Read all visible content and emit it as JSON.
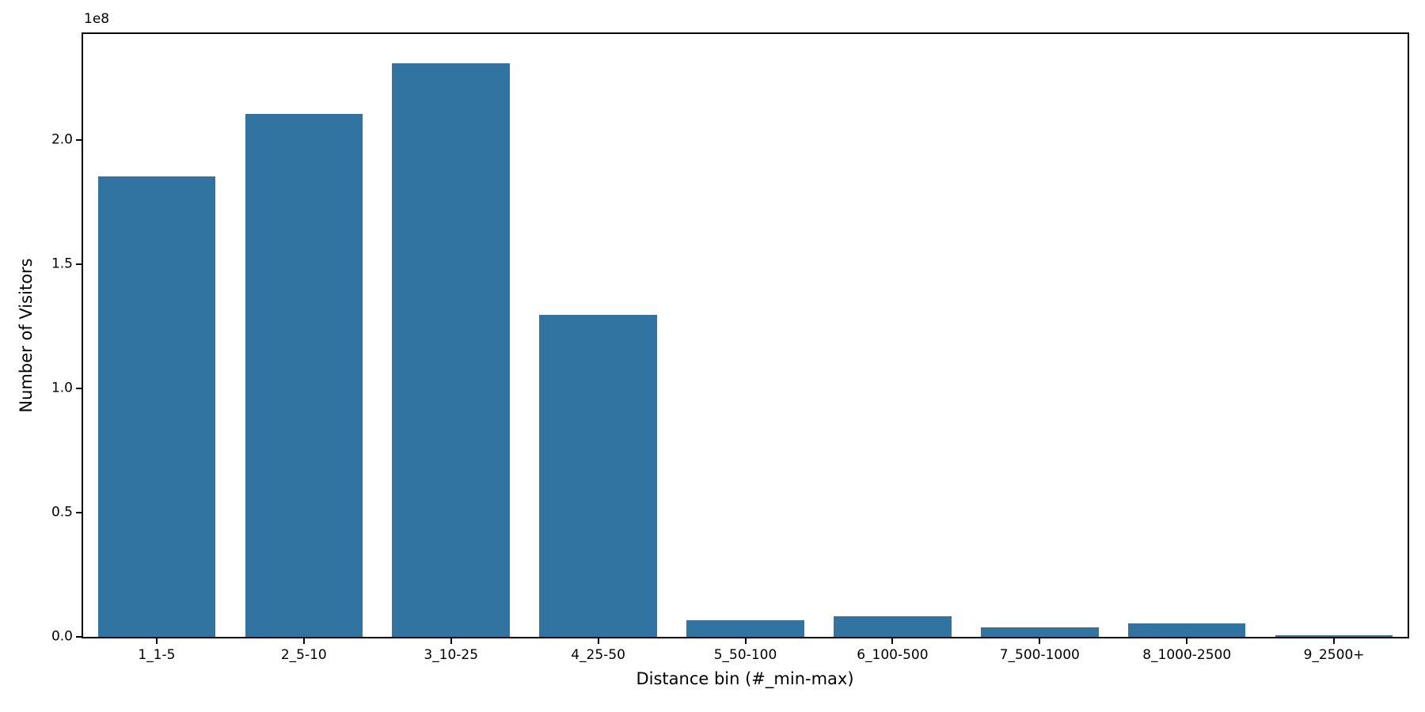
{
  "chart_data": {
    "type": "bar",
    "title": "",
    "xlabel": "Distance bin (#_min-max)",
    "ylabel": "Number of Visitors",
    "offset_text": "1e8",
    "categories": [
      "1_1-5",
      "2_5-10",
      "3_10-25",
      "4_25-50",
      "5_50-100",
      "6_100-500",
      "7_500-1000",
      "8_1000-2500",
      "9_2500+"
    ],
    "values": [
      185400000,
      210400000,
      230900000,
      129600000,
      6700000,
      8300000,
      3700000,
      5300000,
      500000
    ],
    "bar_color": "#3274a1",
    "bar_width_fraction": 0.8,
    "ylim": [
      0,
      242700000
    ],
    "yticks": [
      {
        "label": "0.0",
        "value": 0
      },
      {
        "label": "0.5",
        "value": 50000000
      },
      {
        "label": "1.0",
        "value": 100000000
      },
      {
        "label": "1.5",
        "value": 150000000
      },
      {
        "label": "2.0",
        "value": 200000000
      }
    ],
    "grid": false,
    "legend_position": "none"
  }
}
